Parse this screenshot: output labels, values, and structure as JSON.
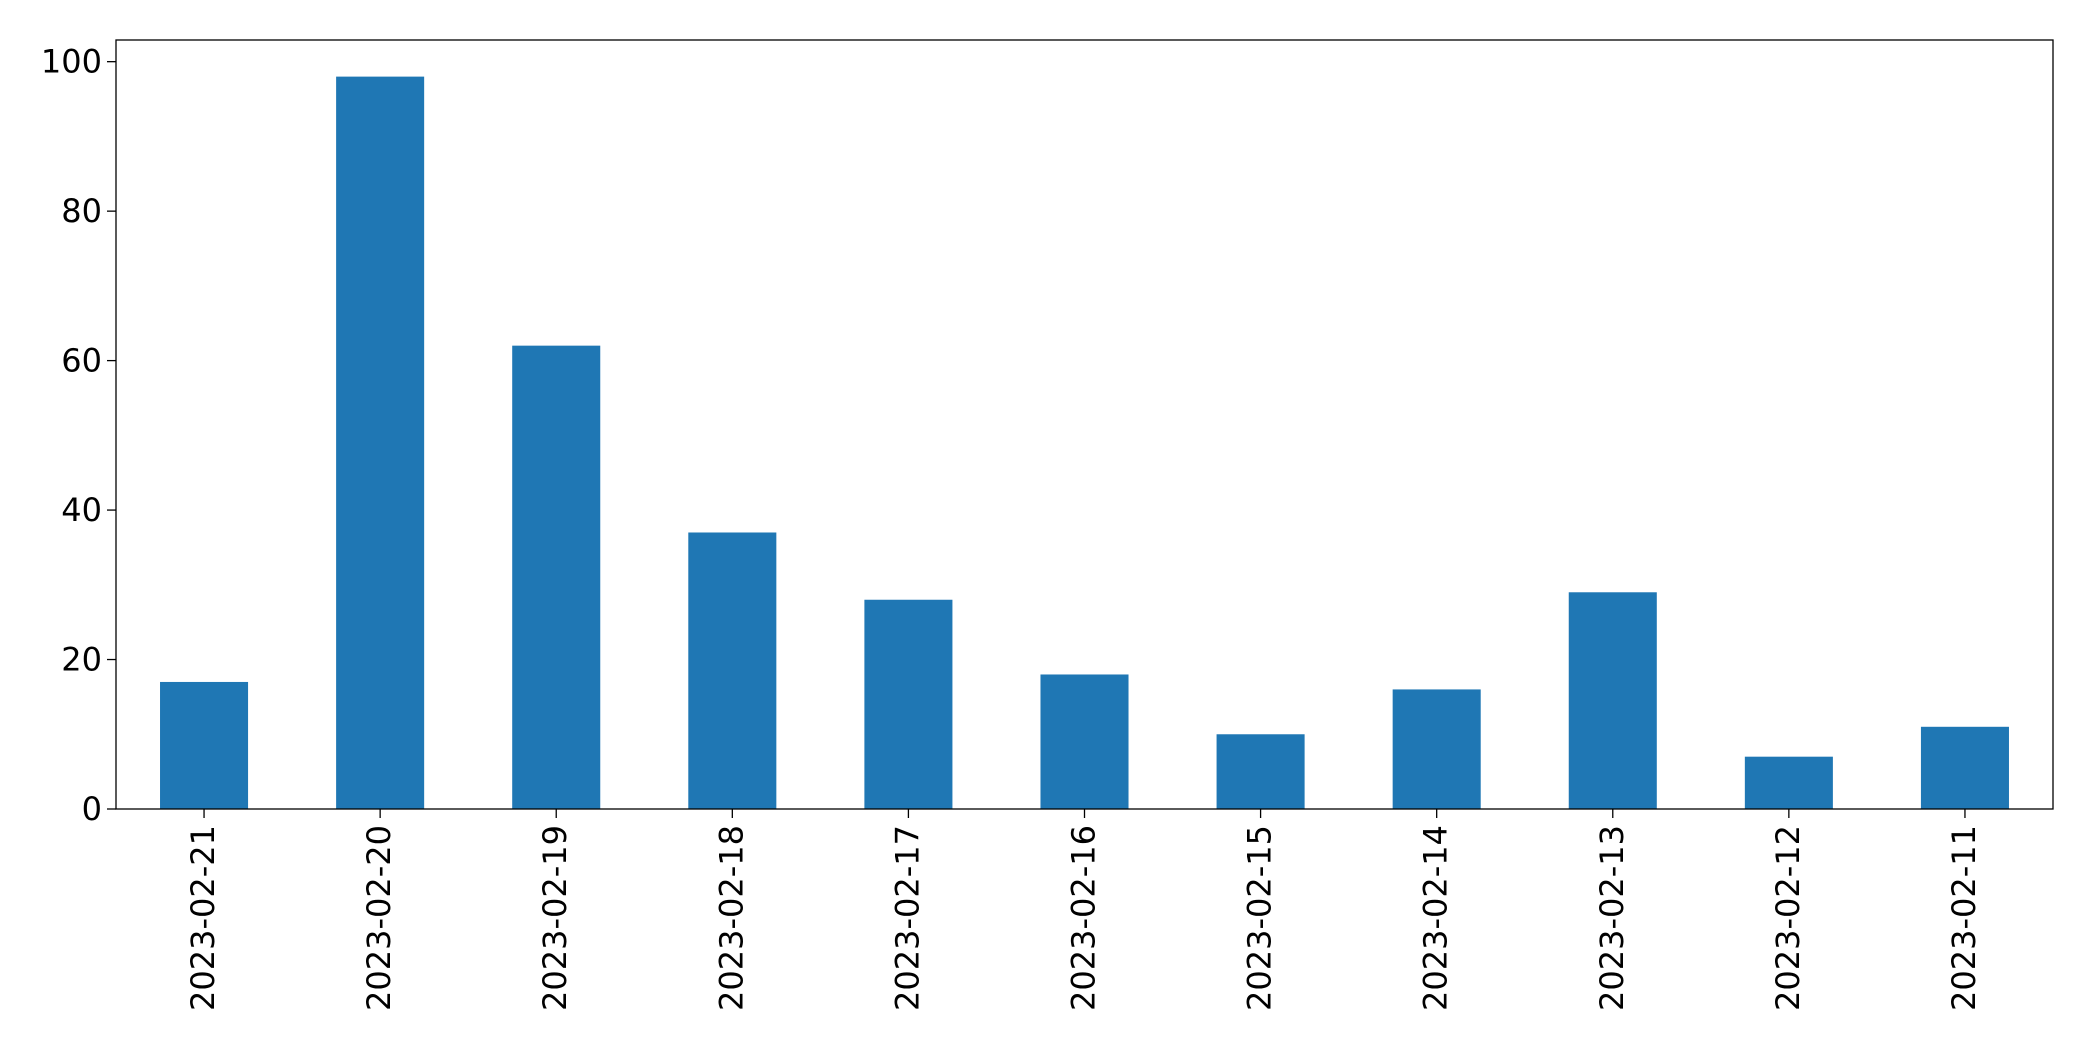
{
  "chart_data": {
    "type": "bar",
    "categories": [
      "2023-02-21",
      "2023-02-20",
      "2023-02-19",
      "2023-02-18",
      "2023-02-17",
      "2023-02-16",
      "2023-02-15",
      "2023-02-14",
      "2023-02-13",
      "2023-02-12",
      "2023-02-11"
    ],
    "values": [
      17,
      98,
      62,
      37,
      28,
      18,
      10,
      16,
      29,
      7,
      11
    ],
    "color": "#1f77b4",
    "ylim": [
      0,
      102.9
    ],
    "yticks": [
      0,
      20,
      40,
      60,
      80,
      100
    ],
    "grid": false
  }
}
